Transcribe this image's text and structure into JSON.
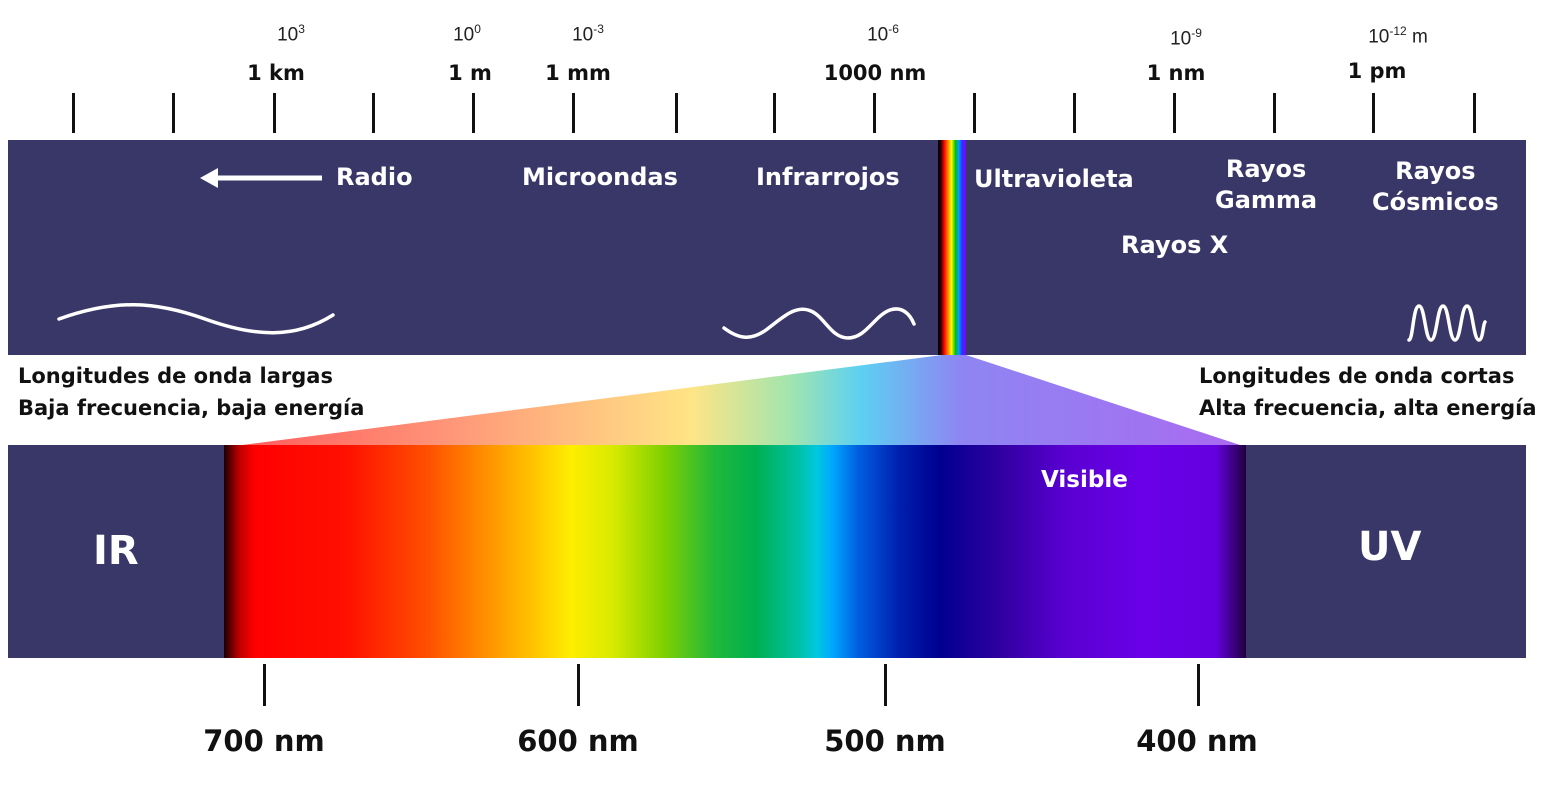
{
  "scale": {
    "exponents": [
      {
        "base": "10",
        "exp": "3",
        "suffix": ""
      },
      {
        "base": "10",
        "exp": "0",
        "suffix": ""
      },
      {
        "base": "10",
        "exp": "-3",
        "suffix": ""
      },
      {
        "base": "10",
        "exp": "-6",
        "suffix": ""
      },
      {
        "base": "10",
        "exp": "-9",
        "suffix": ""
      },
      {
        "base": "10",
        "exp": "-12",
        "suffix": " m"
      }
    ],
    "units": [
      "1 km",
      "1 m",
      "1 mm",
      "1000 nm",
      "1 nm",
      "1 pm"
    ]
  },
  "spectrum": {
    "radio": "Radio",
    "microwaves": "Microondas",
    "infrared": "Infrarrojos",
    "ultraviolet": "Ultravioleta",
    "gamma_line1": "Rayos",
    "gamma_line2": "Gamma",
    "cosmic_line1": "Rayos",
    "cosmic_line2": "Cósmicos",
    "xrays": "Rayos X"
  },
  "notes": {
    "left_line1": "Longitudes de onda largas",
    "left_line2": "Baja frecuencia, baja energía",
    "right_line1": "Longitudes de onda cortas",
    "right_line2": "Alta frecuencia, alta energía"
  },
  "visible_band": {
    "ir": "IR",
    "uv": "UV",
    "visible": "Visible",
    "wavelengths": [
      "700 nm",
      "600 nm",
      "500 nm",
      "400 nm"
    ]
  },
  "colors": {
    "band": "#393768",
    "text_on_band": "#ffffff"
  }
}
